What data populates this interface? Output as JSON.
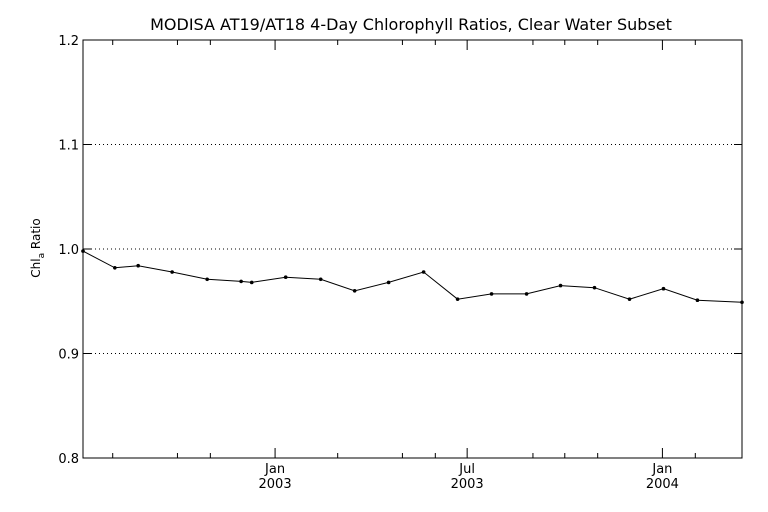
{
  "chart_data": {
    "type": "line",
    "title": "MODISA AT19/AT18 4-Day Chlorophyll Ratios, Clear Water Subset",
    "ylabel": "Chl",
    "ylabel_subscript": "a",
    "ylabel_suffix": " Ratio",
    "xlabel": "",
    "ylim": [
      0.8,
      1.2
    ],
    "y_ticks": [
      {
        "value": 0.8,
        "label": "0.8"
      },
      {
        "value": 0.9,
        "label": "0.9"
      },
      {
        "value": 1.0,
        "label": "1.0"
      },
      {
        "value": 1.1,
        "label": "1.1"
      },
      {
        "value": 1.2,
        "label": "1.2"
      }
    ],
    "y_gridlines": [
      0.9,
      1.0,
      1.1
    ],
    "xlim": [
      "2002-07-04",
      "2004-03-16"
    ],
    "x_major_ticks": [
      {
        "date": "2003-01-01",
        "label_top": "Jan",
        "label_bottom": "2003"
      },
      {
        "date": "2003-07-01",
        "label_top": "Jul",
        "label_bottom": "2003"
      },
      {
        "date": "2004-01-01",
        "label_top": "Jan",
        "label_bottom": "2004"
      }
    ],
    "x_minor_ticks": [
      "2002-08-01",
      "2002-10-01",
      "2002-11-01",
      "2003-03-01",
      "2003-05-01",
      "2003-06-01",
      "2003-09-01",
      "2003-10-01",
      "2003-11-01",
      "2004-02-01"
    ],
    "grid": "horizontal dotted",
    "series": [
      {
        "color": "#000000",
        "points": [
          {
            "x": "2002-07-04",
            "y": 0.998
          },
          {
            "x": "2002-08-03",
            "y": 0.982
          },
          {
            "x": "2002-08-25",
            "y": 0.984
          },
          {
            "x": "2002-09-26",
            "y": 0.978
          },
          {
            "x": "2002-10-29",
            "y": 0.971
          },
          {
            "x": "2002-11-30",
            "y": 0.969
          },
          {
            "x": "2002-12-10",
            "y": 0.968
          },
          {
            "x": "2003-01-11",
            "y": 0.973
          },
          {
            "x": "2003-02-13",
            "y": 0.971
          },
          {
            "x": "2003-03-17",
            "y": 0.96
          },
          {
            "x": "2003-04-18",
            "y": 0.968
          },
          {
            "x": "2003-05-21",
            "y": 0.978
          },
          {
            "x": "2003-06-22",
            "y": 0.952
          },
          {
            "x": "2003-07-24",
            "y": 0.957
          },
          {
            "x": "2003-08-26",
            "y": 0.957
          },
          {
            "x": "2003-09-27",
            "y": 0.965
          },
          {
            "x": "2003-10-29",
            "y": 0.963
          },
          {
            "x": "2003-12-01",
            "y": 0.952
          },
          {
            "x": "2004-01-02",
            "y": 0.962
          },
          {
            "x": "2004-02-03",
            "y": 0.951
          },
          {
            "x": "2004-03-16",
            "y": 0.949
          }
        ]
      }
    ]
  }
}
